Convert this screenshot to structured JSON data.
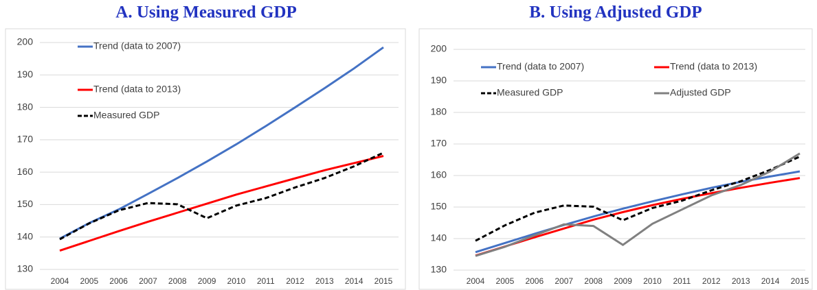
{
  "chart_data": [
    {
      "type": "line",
      "title": "A. Using Measured GDP",
      "x": [
        2004,
        2005,
        2006,
        2007,
        2008,
        2009,
        2010,
        2011,
        2012,
        2013,
        2014,
        2015
      ],
      "xlim": [
        2004,
        2015
      ],
      "ylim": [
        130,
        200
      ],
      "yticks": [
        130,
        140,
        150,
        160,
        170,
        180,
        190,
        200
      ],
      "grid": true,
      "series": [
        {
          "name": "Trend (data to 2007)",
          "color": "#4472c4",
          "values": [
            139.5,
            144.3,
            148.5,
            153.3,
            158.2,
            163.3,
            168.6,
            174.2,
            180,
            185.9,
            192,
            198.5
          ]
        },
        {
          "name": "Trend (data to 2013)",
          "color": "#ff0000",
          "values": [
            135.8,
            138.8,
            141.8,
            144.7,
            147.5,
            150.3,
            153.1,
            155.6,
            158.1,
            160.6,
            162.8,
            165
          ]
        },
        {
          "name": "Measured GDP",
          "color": "#000000",
          "dashed": true,
          "values": [
            139.3,
            144.2,
            148.2,
            150.5,
            150.1,
            145.8,
            149.7,
            152.0,
            155.3,
            158.2,
            161.8,
            166.0
          ]
        }
      ]
    },
    {
      "type": "line",
      "title": "B. Using Adjusted GDP",
      "x": [
        2004,
        2005,
        2006,
        2007,
        2008,
        2009,
        2010,
        2011,
        2012,
        2013,
        2014,
        2015
      ],
      "xlim": [
        2004,
        2015
      ],
      "ylim": [
        130,
        200
      ],
      "yticks": [
        130,
        140,
        150,
        160,
        170,
        180,
        190,
        200
      ],
      "grid": true,
      "series": [
        {
          "name": "Trend (data to 2007)",
          "color": "#4472c4",
          "values": [
            135.7,
            138.6,
            141.5,
            144.3,
            147.0,
            149.5,
            151.8,
            154.0,
            156.1,
            158.0,
            159.7,
            161.3
          ]
        },
        {
          "name": "Trend (data to 2013)",
          "color": "#ff0000",
          "values": [
            134.6,
            137.5,
            140.4,
            143.2,
            146.0,
            148.4,
            150.6,
            152.6,
            154.4,
            156.1,
            157.7,
            159.2
          ]
        },
        {
          "name": "Measured GDP",
          "color": "#000000",
          "dashed": true,
          "values": [
            139.3,
            144.2,
            148.2,
            150.5,
            150.1,
            145.8,
            149.7,
            152.0,
            155.3,
            158.2,
            161.8,
            166.0
          ]
        },
        {
          "name": "Adjusted GDP",
          "color": "#808080",
          "values": [
            134.5,
            137.4,
            141.0,
            144.5,
            144.0,
            138.0,
            144.7,
            149.2,
            153.7,
            157.0,
            161.3,
            167.0
          ]
        }
      ]
    }
  ]
}
